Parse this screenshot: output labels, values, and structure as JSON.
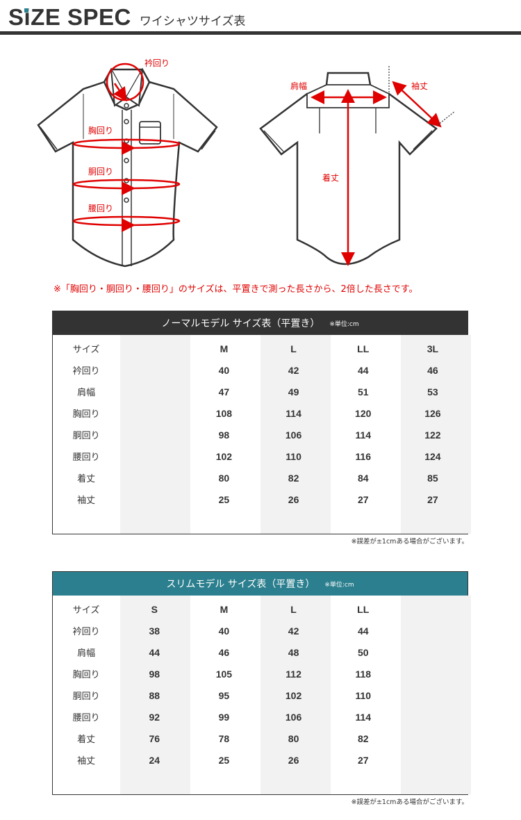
{
  "header": {
    "title": "SiZE SPEC",
    "subtitle": "ワイシャツサイズ表",
    "accent": "#2b8090"
  },
  "diagram": {
    "front": {
      "collar": "衿回り",
      "chest": "胸回り",
      "waist": "胴回り",
      "hip": "腰回り"
    },
    "back": {
      "shoulder": "肩幅",
      "sleeve": "袖丈",
      "length": "着丈"
    },
    "marker_color": "#e00000"
  },
  "note": "※「胸回り・胴回り・腰回り」のサイズは、平置きで測った長さから、2倍した長さです。",
  "tables": [
    {
      "title": "ノーマルモデル サイズ表（平置き）",
      "unit": "※単位:cm",
      "header_color": "#333333",
      "rows": [
        {
          "label": "サイズ",
          "values": [
            "",
            "M",
            "L",
            "LL",
            "3L"
          ]
        },
        {
          "label": "衿回り",
          "values": [
            "",
            "40",
            "42",
            "44",
            "46"
          ]
        },
        {
          "label": "肩幅",
          "values": [
            "",
            "47",
            "49",
            "51",
            "53"
          ]
        },
        {
          "label": "胸回り",
          "values": [
            "",
            "108",
            "114",
            "120",
            "126"
          ]
        },
        {
          "label": "胴回り",
          "values": [
            "",
            "98",
            "106",
            "114",
            "122"
          ]
        },
        {
          "label": "腰回り",
          "values": [
            "",
            "102",
            "110",
            "116",
            "124"
          ]
        },
        {
          "label": "着丈",
          "values": [
            "",
            "80",
            "82",
            "84",
            "85"
          ]
        },
        {
          "label": "袖丈",
          "values": [
            "",
            "25",
            "26",
            "27",
            "27"
          ]
        }
      ],
      "footnote": "※誤差が±1cmある場合がございます。"
    },
    {
      "title": "スリムモデル サイズ表（平置き）",
      "unit": "※単位:cm",
      "header_color": "#2b7f8e",
      "rows": [
        {
          "label": "サイズ",
          "values": [
            "S",
            "M",
            "L",
            "LL",
            ""
          ]
        },
        {
          "label": "衿回り",
          "values": [
            "38",
            "40",
            "42",
            "44",
            ""
          ]
        },
        {
          "label": "肩幅",
          "values": [
            "44",
            "46",
            "48",
            "50",
            ""
          ]
        },
        {
          "label": "胸回り",
          "values": [
            "98",
            "105",
            "112",
            "118",
            ""
          ]
        },
        {
          "label": "胴回り",
          "values": [
            "88",
            "95",
            "102",
            "110",
            ""
          ]
        },
        {
          "label": "腰回り",
          "values": [
            "92",
            "99",
            "106",
            "114",
            ""
          ]
        },
        {
          "label": "着丈",
          "values": [
            "76",
            "78",
            "80",
            "82",
            ""
          ]
        },
        {
          "label": "袖丈",
          "values": [
            "24",
            "25",
            "26",
            "27",
            ""
          ]
        }
      ],
      "footnote": "※誤差が±1cmある場合がございます。"
    }
  ]
}
